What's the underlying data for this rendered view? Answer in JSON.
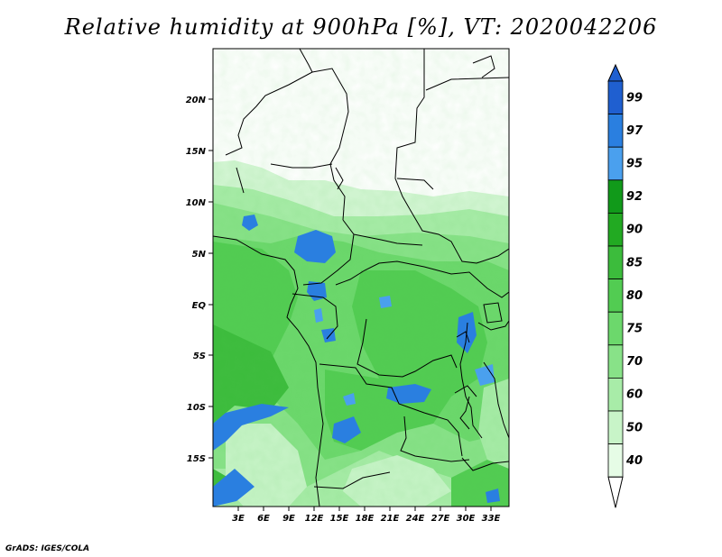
{
  "title": "Relative humidity at 900hPa [%], VT: 2020042206",
  "credit": "GrADS: IGES/COLA",
  "map": {
    "lon_labels": [
      "3E",
      "6E",
      "9E",
      "12E",
      "15E",
      "18E",
      "21E",
      "24E",
      "27E",
      "30E",
      "33E"
    ],
    "lat_labels": [
      "20N",
      "15N",
      "10N",
      "5N",
      "EQ",
      "5S",
      "10S",
      "15S"
    ],
    "field": "Relative humidity at 900hPa",
    "units": "%"
  },
  "colorbar": {
    "levels": [
      "99",
      "97",
      "95",
      "92",
      "90",
      "85",
      "80",
      "75",
      "70",
      "60",
      "50",
      "40"
    ],
    "colors": [
      "#1f5fd0",
      "#2a7fe0",
      "#4aa0ee",
      "#119a1a",
      "#22aa22",
      "#3cbc3c",
      "#52cc52",
      "#6cd86c",
      "#88e288",
      "#a8eca8",
      "#c8f4c8",
      "#e6fce6"
    ]
  }
}
